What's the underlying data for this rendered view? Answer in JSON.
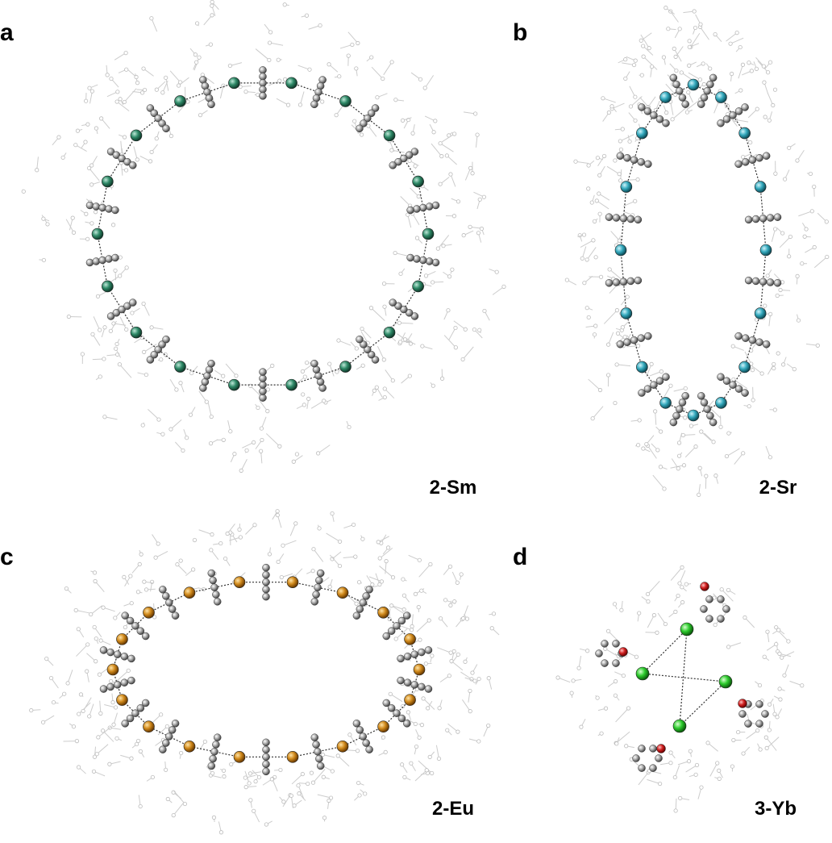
{
  "panels": [
    {
      "label": "a",
      "caption": "2-Sm"
    },
    {
      "label": "b",
      "caption": "2-Sr"
    },
    {
      "label": "c",
      "caption": "2-Eu"
    },
    {
      "label": "d",
      "caption": "3-Yb"
    }
  ]
}
